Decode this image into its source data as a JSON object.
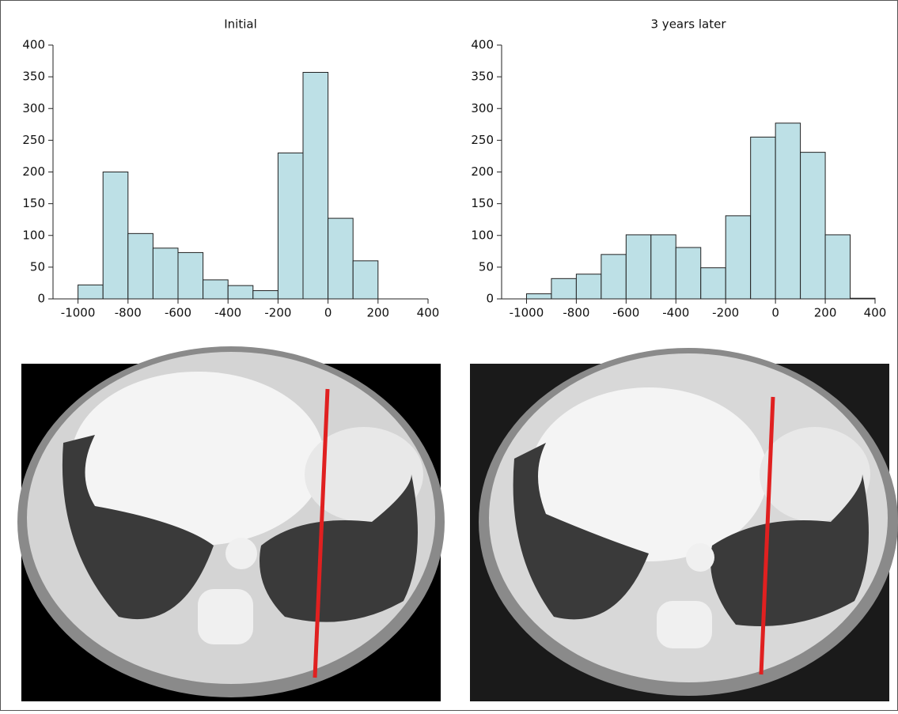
{
  "chart_data": [
    {
      "type": "histogram",
      "title": "Initial",
      "bins": [
        -1000,
        -900,
        -800,
        -700,
        -600,
        -500,
        -400,
        -300,
        -200,
        -100,
        0,
        100,
        200
      ],
      "values": [
        22,
        200,
        103,
        80,
        73,
        30,
        21,
        13,
        230,
        357,
        127,
        60
      ],
      "color": "#bde0e6",
      "xlim": [
        -1100,
        400
      ],
      "xticks": [
        -1000,
        -800,
        -600,
        -400,
        -200,
        0,
        200,
        400
      ],
      "ylim": [
        0,
        400
      ],
      "yticks": [
        0,
        50,
        100,
        150,
        200,
        250,
        300,
        350,
        400
      ]
    },
    {
      "type": "histogram",
      "title": "3 years later",
      "bins": [
        -1000,
        -900,
        -800,
        -700,
        -600,
        -500,
        -400,
        -300,
        -200,
        -100,
        0,
        100,
        200,
        300,
        400
      ],
      "values": [
        8,
        32,
        39,
        70,
        101,
        101,
        81,
        49,
        131,
        255,
        277,
        231,
        101,
        1
      ],
      "color": "#bde0e6",
      "xlim": [
        -1100,
        400
      ],
      "xticks": [
        -1000,
        -800,
        -600,
        -400,
        -200,
        0,
        200,
        400
      ],
      "ylim": [
        0,
        400
      ],
      "yticks": [
        0,
        50,
        100,
        150,
        200,
        250,
        300,
        350,
        400
      ]
    }
  ]
}
